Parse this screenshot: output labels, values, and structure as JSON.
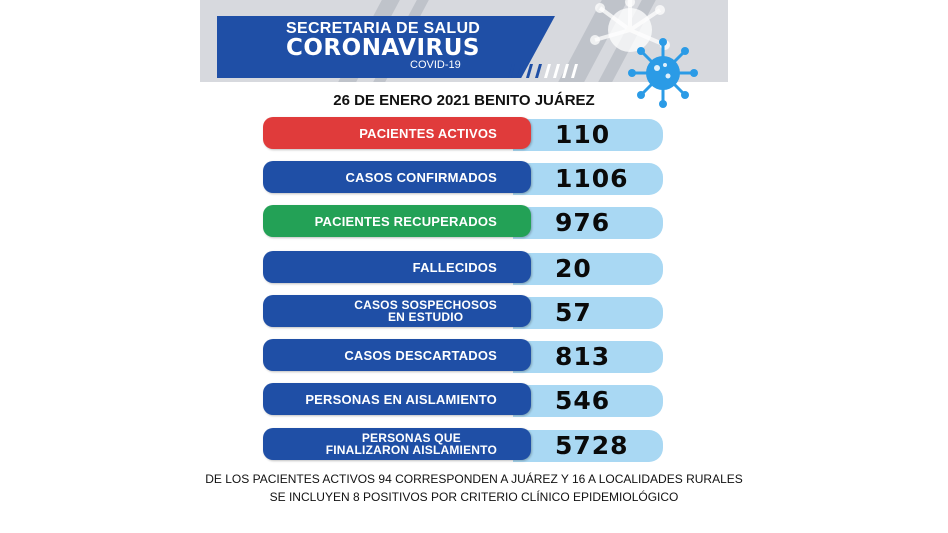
{
  "header": {
    "line1": "SECRETARIA DE SALUD",
    "line2": "CORONAVIRUS",
    "line3": "COVID-19"
  },
  "date_line": "26 DE ENERO 2021 BENITO JUÁREZ",
  "stats": [
    {
      "label": "PACIENTES ACTIVOS",
      "value": "110",
      "color": "#e03b3b"
    },
    {
      "label": "CASOS CONFIRMADOS",
      "value": "1106",
      "color": "#1f4fa6"
    },
    {
      "label": "PACIENTES RECUPERADOS",
      "value": "976",
      "color": "#23a156"
    },
    {
      "label": "FALLECIDOS",
      "value": "20",
      "color": "#1f4fa6"
    },
    {
      "label_line1": "CASOS SOSPECHOSOS",
      "label_line2": "EN ESTUDIO",
      "value": "57",
      "color": "#1f4fa6"
    },
    {
      "label": "CASOS DESCARTADOS",
      "value": "813",
      "color": "#1f4fa6"
    },
    {
      "label": "PERSONAS EN AISLAMIENTO",
      "value": "546",
      "color": "#1f4fa6"
    },
    {
      "label_line1": "PERSONAS QUE",
      "label_line2": "FINALIZARON AISLAMIENTO",
      "value": "5728",
      "color": "#1f4fa6"
    }
  ],
  "footer": {
    "line1": "DE LOS PACIENTES ACTIVOS 94 CORRESPONDEN A JUÁREZ Y 16 A LOCALIDADES RURALES",
    "line2": "SE INCLUYEN 8 POSITIVOS  POR  CRITERIO CLÍNICO EPIDEMIOLÓGICO"
  },
  "icons": {
    "virus": "virus-icon"
  },
  "colors": {
    "header_blue": "#1f4fa6",
    "value_light_blue": "#a9d8f3",
    "virus_blue": "#2b9be6"
  }
}
